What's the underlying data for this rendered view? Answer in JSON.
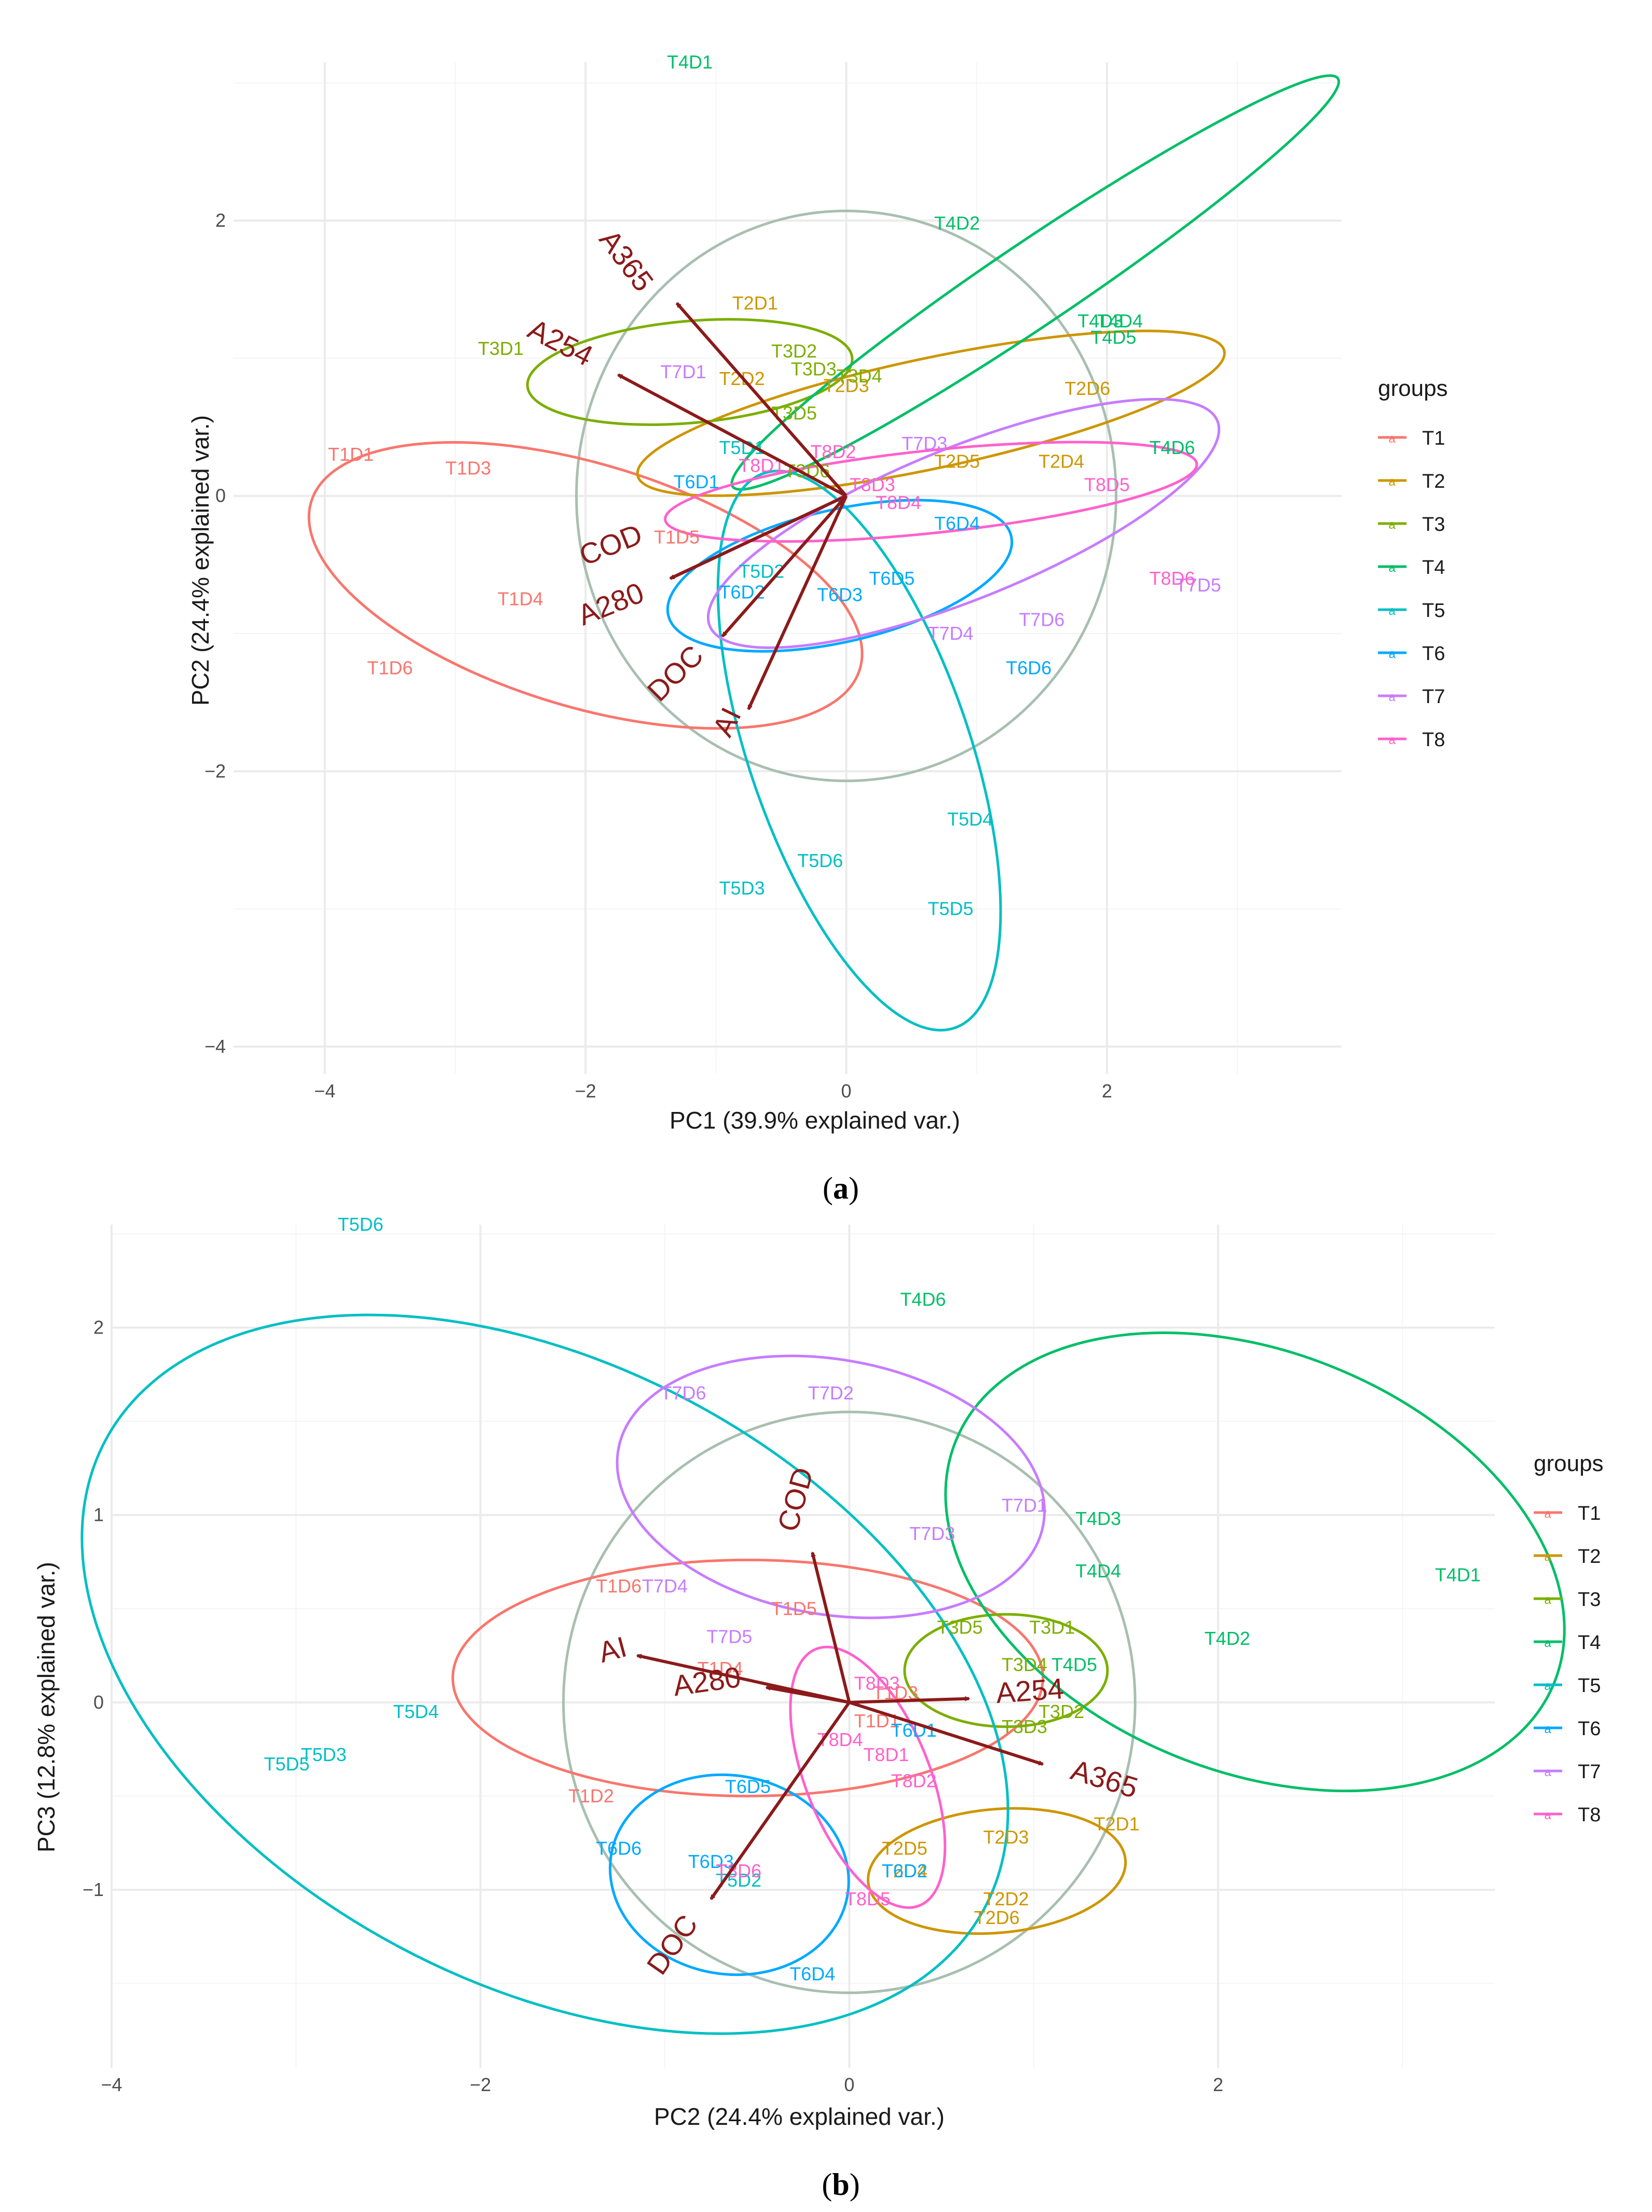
{
  "colors": {
    "T1": "#F8766D",
    "T2": "#CD9600",
    "T3": "#7CAE00",
    "T4": "#00BE67",
    "T5": "#00BFC4",
    "T6": "#00A9FF",
    "T7": "#C77CFF",
    "T8": "#FF61CC",
    "arrow": "#8B1A1A",
    "circle": "#A8BFB0",
    "grid_major": "#EBEBEB",
    "grid_minor": "#F4F4F4"
  },
  "legend": {
    "title": "groups",
    "key_glyph": "a",
    "items": [
      "T1",
      "T2",
      "T3",
      "T4",
      "T5",
      "T6",
      "T7",
      "T8"
    ]
  },
  "panels": [
    {
      "label": "(a)",
      "bold": "a"
    },
    {
      "label": "(b)",
      "bold": "b"
    }
  ],
  "chart_data": [
    {
      "type": "scatter",
      "subtype": "PCA biplot",
      "xlabel": "PC1 (39.9% explained var.)",
      "ylabel": "PC2 (24.4% explained var.)",
      "xlim": [
        -4.7,
        3.8
      ],
      "ylim": [
        -4.2,
        3.15
      ],
      "xticks": [
        -4,
        -2,
        0,
        2
      ],
      "yticks": [
        -4,
        -2,
        0,
        2
      ],
      "correlation_circle_radius": 2.07,
      "points": [
        {
          "label": "T1D1",
          "group": "T1",
          "x": -3.8,
          "y": 0.3
        },
        {
          "label": "T1D3",
          "group": "T1",
          "x": -2.9,
          "y": 0.2
        },
        {
          "label": "T1D4",
          "group": "T1",
          "x": -2.5,
          "y": -0.75
        },
        {
          "label": "T1D6",
          "group": "T1",
          "x": -3.5,
          "y": -1.25
        },
        {
          "label": "T1D5",
          "group": "T1",
          "x": -1.3,
          "y": -0.3
        },
        {
          "label": "T2D1",
          "group": "T2",
          "x": -0.7,
          "y": 1.4
        },
        {
          "label": "T2D2",
          "group": "T2",
          "x": -0.8,
          "y": 0.85
        },
        {
          "label": "T2D3",
          "group": "T2",
          "x": 0.0,
          "y": 0.8
        },
        {
          "label": "T2D5",
          "group": "T2",
          "x": 0.85,
          "y": 0.25
        },
        {
          "label": "T2D4",
          "group": "T2",
          "x": 1.65,
          "y": 0.25
        },
        {
          "label": "T2D6",
          "group": "T2",
          "x": 1.85,
          "y": 0.78
        },
        {
          "label": "T3D1",
          "group": "T3",
          "x": -2.65,
          "y": 1.07
        },
        {
          "label": "T3D2",
          "group": "T3",
          "x": -0.4,
          "y": 1.05
        },
        {
          "label": "T3D3",
          "group": "T3",
          "x": -0.25,
          "y": 0.92
        },
        {
          "label": "T3D4",
          "group": "T3",
          "x": 0.1,
          "y": 0.87
        },
        {
          "label": "T3D5",
          "group": "T3",
          "x": -0.4,
          "y": 0.6
        },
        {
          "label": "T3D6",
          "group": "T3",
          "x": -0.3,
          "y": 0.18
        },
        {
          "label": "T4D1",
          "group": "T4",
          "x": -1.2,
          "y": 3.15
        },
        {
          "label": "T4D2",
          "group": "T4",
          "x": 0.85,
          "y": 1.98
        },
        {
          "label": "T4D3",
          "group": "T4",
          "x": 1.95,
          "y": 1.27
        },
        {
          "label": "T4D4",
          "group": "T4",
          "x": 2.1,
          "y": 1.27
        },
        {
          "label": "T4D5",
          "group": "T4",
          "x": 2.05,
          "y": 1.15
        },
        {
          "label": "T4D6",
          "group": "T4",
          "x": 2.5,
          "y": 0.35
        },
        {
          "label": "T5D1",
          "group": "T5",
          "x": -0.8,
          "y": 0.35
        },
        {
          "label": "T5D2",
          "group": "T5",
          "x": -0.65,
          "y": -0.55
        },
        {
          "label": "T5D3",
          "group": "T5",
          "x": -0.8,
          "y": -2.85
        },
        {
          "label": "T5D4",
          "group": "T5",
          "x": 0.95,
          "y": -2.35
        },
        {
          "label": "T5D5",
          "group": "T5",
          "x": 0.8,
          "y": -3.0
        },
        {
          "label": "T5D6",
          "group": "T5",
          "x": -0.2,
          "y": -2.65
        },
        {
          "label": "T6D1",
          "group": "T6",
          "x": -1.15,
          "y": 0.1
        },
        {
          "label": "T6D2",
          "group": "T6",
          "x": -0.8,
          "y": -0.7
        },
        {
          "label": "T6D3",
          "group": "T6",
          "x": -0.05,
          "y": -0.72
        },
        {
          "label": "T6D4",
          "group": "T6",
          "x": 0.85,
          "y": -0.2
        },
        {
          "label": "T6D5",
          "group": "T6",
          "x": 0.35,
          "y": -0.6
        },
        {
          "label": "T6D6",
          "group": "T6",
          "x": 1.4,
          "y": -1.25
        },
        {
          "label": "T7D1",
          "group": "T7",
          "x": -1.25,
          "y": 0.9
        },
        {
          "label": "T7D3",
          "group": "T7",
          "x": 0.6,
          "y": 0.38
        },
        {
          "label": "T7D4",
          "group": "T7",
          "x": 0.8,
          "y": -1.0
        },
        {
          "label": "T7D5",
          "group": "T7",
          "x": 2.7,
          "y": -0.65
        },
        {
          "label": "T7D6",
          "group": "T7",
          "x": 1.5,
          "y": -0.9
        },
        {
          "label": "T8D1",
          "group": "T8",
          "x": -0.65,
          "y": 0.22
        },
        {
          "label": "T8D2",
          "group": "T8",
          "x": -0.1,
          "y": 0.32
        },
        {
          "label": "T8D3",
          "group": "T8",
          "x": 0.2,
          "y": 0.08
        },
        {
          "label": "T8D4",
          "group": "T8",
          "x": 0.4,
          "y": -0.05
        },
        {
          "label": "T8D5",
          "group": "T8",
          "x": 2.0,
          "y": 0.08
        },
        {
          "label": "T8D6",
          "group": "T8",
          "x": 2.5,
          "y": -0.6
        }
      ],
      "ellipses": [
        {
          "group": "T1",
          "cx": -2.0,
          "cy": -0.65,
          "rx": 2.2,
          "ry": 0.88,
          "angle": -17
        },
        {
          "group": "T2",
          "cx": 0.65,
          "cy": 0.6,
          "rx": 2.3,
          "ry": 0.4,
          "angle": 12
        },
        {
          "group": "T3",
          "cx": -1.2,
          "cy": 0.9,
          "rx": 1.25,
          "ry": 0.37,
          "angle": 5
        },
        {
          "group": "T4",
          "cx": 1.45,
          "cy": 1.55,
          "rx": 2.8,
          "ry": 0.3,
          "angle": 34
        },
        {
          "group": "T5",
          "cx": 0.1,
          "cy": -1.85,
          "rx": 2.25,
          "ry": 0.8,
          "angle": -71
        },
        {
          "group": "T6",
          "cx": -0.05,
          "cy": -0.58,
          "rx": 1.35,
          "ry": 0.48,
          "angle": 13
        },
        {
          "group": "T7",
          "cx": 0.9,
          "cy": -0.2,
          "rx": 2.1,
          "ry": 0.55,
          "angle": 22
        },
        {
          "group": "T8",
          "cx": 0.65,
          "cy": 0.03,
          "rx": 2.05,
          "ry": 0.3,
          "angle": 6
        }
      ],
      "loadings": [
        {
          "label": "A365",
          "x": -1.3,
          "y": 1.4,
          "lx": -1.7,
          "ly": 1.7,
          "rot": 53
        },
        {
          "label": "A254",
          "x": -1.75,
          "y": 0.88,
          "lx": -2.2,
          "ly": 1.1,
          "rot": 27
        },
        {
          "label": "COD",
          "x": -1.35,
          "y": -0.6,
          "lx": -1.8,
          "ly": -0.37,
          "rot": -22
        },
        {
          "label": "A280",
          "x": -1.35,
          "y": -0.6,
          "lx": -1.8,
          "ly": -0.8,
          "rot": -22
        },
        {
          "label": "DOC",
          "x": -0.95,
          "y": -1.02,
          "lx": -1.3,
          "ly": -1.3,
          "rot": -45
        },
        {
          "label": "AI",
          "x": -0.75,
          "y": -1.55,
          "lx": -0.9,
          "ly": -1.65,
          "rot": -64
        }
      ]
    },
    {
      "type": "scatter",
      "subtype": "PCA biplot",
      "xlabel": "PC2 (24.4% explained var.)",
      "ylabel": "PC3 (12.8% explained var.)",
      "xlim": [
        -4.0,
        3.5
      ],
      "ylim": [
        -1.95,
        2.55
      ],
      "xticks": [
        -4,
        -2,
        0,
        2
      ],
      "yticks": [
        -1,
        0,
        1,
        2
      ],
      "correlation_circle_radius": 1.55,
      "points": [
        {
          "label": "T1D1",
          "group": "T1",
          "x": 0.15,
          "y": -0.1
        },
        {
          "label": "T1D2",
          "group": "T1",
          "x": -1.4,
          "y": -0.5
        },
        {
          "label": "T1D3",
          "group": "T1",
          "x": 0.25,
          "y": 0.05
        },
        {
          "label": "T1D4",
          "group": "T1",
          "x": -0.7,
          "y": 0.18
        },
        {
          "label": "T1D5",
          "group": "T1",
          "x": -0.3,
          "y": 0.5
        },
        {
          "label": "T1D6",
          "group": "T1",
          "x": -1.25,
          "y": 0.62
        },
        {
          "label": "T2D1",
          "group": "T2",
          "x": 1.45,
          "y": -0.65
        },
        {
          "label": "T2D2",
          "group": "T2",
          "x": 0.85,
          "y": -1.05
        },
        {
          "label": "T2D3",
          "group": "T2",
          "x": 0.85,
          "y": -0.72
        },
        {
          "label": "T2D4",
          "group": "T2",
          "x": 0.3,
          "y": -0.9
        },
        {
          "label": "T2D5",
          "group": "T2",
          "x": 0.3,
          "y": -0.78
        },
        {
          "label": "T2D6",
          "group": "T2",
          "x": 0.8,
          "y": -1.15
        },
        {
          "label": "T3D1",
          "group": "T3",
          "x": 1.1,
          "y": 0.4
        },
        {
          "label": "T3D2",
          "group": "T3",
          "x": 1.15,
          "y": -0.05
        },
        {
          "label": "T3D3",
          "group": "T3",
          "x": 0.95,
          "y": -0.13
        },
        {
          "label": "T3D4",
          "group": "T3",
          "x": 0.95,
          "y": 0.2
        },
        {
          "label": "T3D5",
          "group": "T3",
          "x": 0.6,
          "y": 0.4
        },
        {
          "label": "T4D1",
          "group": "T4",
          "x": 3.3,
          "y": 0.68
        },
        {
          "label": "T4D2",
          "group": "T4",
          "x": 2.05,
          "y": 0.34
        },
        {
          "label": "T4D3",
          "group": "T4",
          "x": 1.35,
          "y": 0.98
        },
        {
          "label": "T4D4",
          "group": "T4",
          "x": 1.35,
          "y": 0.7
        },
        {
          "label": "T4D5",
          "group": "T4",
          "x": 1.22,
          "y": 0.2
        },
        {
          "label": "T4D6",
          "group": "T4",
          "x": 0.4,
          "y": 2.15
        },
        {
          "label": "T5D2",
          "group": "T5",
          "x": -0.6,
          "y": -0.95
        },
        {
          "label": "T5D3",
          "group": "T5",
          "x": -2.85,
          "y": -0.28
        },
        {
          "label": "T5D4",
          "group": "T5",
          "x": -2.35,
          "y": -0.05
        },
        {
          "label": "T5D5",
          "group": "T5",
          "x": -3.05,
          "y": -0.33
        },
        {
          "label": "T5D6",
          "group": "T5",
          "x": -2.65,
          "y": 2.55
        },
        {
          "label": "T6D1",
          "group": "T6",
          "x": 0.35,
          "y": -0.15
        },
        {
          "label": "T6D2",
          "group": "T6",
          "x": 0.3,
          "y": -0.9
        },
        {
          "label": "T6D3",
          "group": "T6",
          "x": -0.75,
          "y": -0.85
        },
        {
          "label": "T6D4",
          "group": "T6",
          "x": -0.2,
          "y": -1.45
        },
        {
          "label": "T6D5",
          "group": "T6",
          "x": -0.55,
          "y": -0.45
        },
        {
          "label": "T6D6",
          "group": "T6",
          "x": -1.25,
          "y": -0.78
        },
        {
          "label": "T7D1",
          "group": "T7",
          "x": 0.95,
          "y": 1.05
        },
        {
          "label": "T7D2",
          "group": "T7",
          "x": -0.1,
          "y": 1.65
        },
        {
          "label": "T7D3",
          "group": "T7",
          "x": 0.45,
          "y": 0.9
        },
        {
          "label": "T7D4",
          "group": "T7",
          "x": -1.0,
          "y": 0.62
        },
        {
          "label": "T7D5",
          "group": "T7",
          "x": -0.65,
          "y": 0.35
        },
        {
          "label": "T7D6",
          "group": "T7",
          "x": -0.9,
          "y": 1.65
        },
        {
          "label": "T8D1",
          "group": "T8",
          "x": 0.2,
          "y": -0.28
        },
        {
          "label": "T8D2",
          "group": "T8",
          "x": 0.35,
          "y": -0.42
        },
        {
          "label": "T8D3",
          "group": "T8",
          "x": 0.15,
          "y": 0.1
        },
        {
          "label": "T8D4",
          "group": "T8",
          "x": -0.05,
          "y": -0.2
        },
        {
          "label": "T8D5",
          "group": "T8",
          "x": 0.1,
          "y": -1.05
        },
        {
          "label": "T8D6",
          "group": "T8",
          "x": -0.6,
          "y": -0.9
        }
      ],
      "ellipses": [
        {
          "group": "T1",
          "cx": -0.55,
          "cy": 0.13,
          "rx": 1.6,
          "ry": 0.63,
          "angle": 0
        },
        {
          "group": "T2",
          "cx": 0.8,
          "cy": -0.9,
          "rx": 0.7,
          "ry": 0.33,
          "angle": 5
        },
        {
          "group": "T3",
          "cx": 0.85,
          "cy": 0.17,
          "rx": 0.55,
          "ry": 0.3,
          "angle": 0
        },
        {
          "group": "T4",
          "cx": 2.2,
          "cy": 0.75,
          "rx": 1.75,
          "ry": 1.12,
          "angle": -22
        },
        {
          "group": "T5",
          "cx": -1.65,
          "cy": 0.15,
          "rx": 2.7,
          "ry": 1.65,
          "angle": -28
        },
        {
          "group": "T6",
          "cx": -0.65,
          "cy": -0.92,
          "rx": 0.65,
          "ry": 0.53,
          "angle": -10
        },
        {
          "group": "T7",
          "cx": -0.1,
          "cy": 1.15,
          "rx": 1.17,
          "ry": 0.68,
          "angle": -10
        },
        {
          "group": "T8",
          "cx": 0.1,
          "cy": -0.4,
          "rx": 0.75,
          "ry": 0.33,
          "angle": -68
        }
      ],
      "loadings": [
        {
          "label": "COD",
          "x": -0.2,
          "y": 0.8,
          "lx": -0.28,
          "ly": 1.08,
          "rot": -75
        },
        {
          "label": "AI",
          "x": -1.15,
          "y": 0.25,
          "lx": -1.28,
          "ly": 0.27,
          "rot": -15
        },
        {
          "label": "A280",
          "x": -0.45,
          "y": 0.08,
          "lx": -0.77,
          "ly": 0.1,
          "rot": -8
        },
        {
          "label": "A254",
          "x": 0.65,
          "y": 0.02,
          "lx": 0.98,
          "ly": 0.05,
          "rot": -4
        },
        {
          "label": "A365",
          "x": 1.05,
          "y": -0.33,
          "lx": 1.38,
          "ly": -0.42,
          "rot": 17
        },
        {
          "label": "DOC",
          "x": -0.75,
          "y": -1.05,
          "lx": -0.95,
          "ly": -1.3,
          "rot": -55
        }
      ]
    }
  ]
}
